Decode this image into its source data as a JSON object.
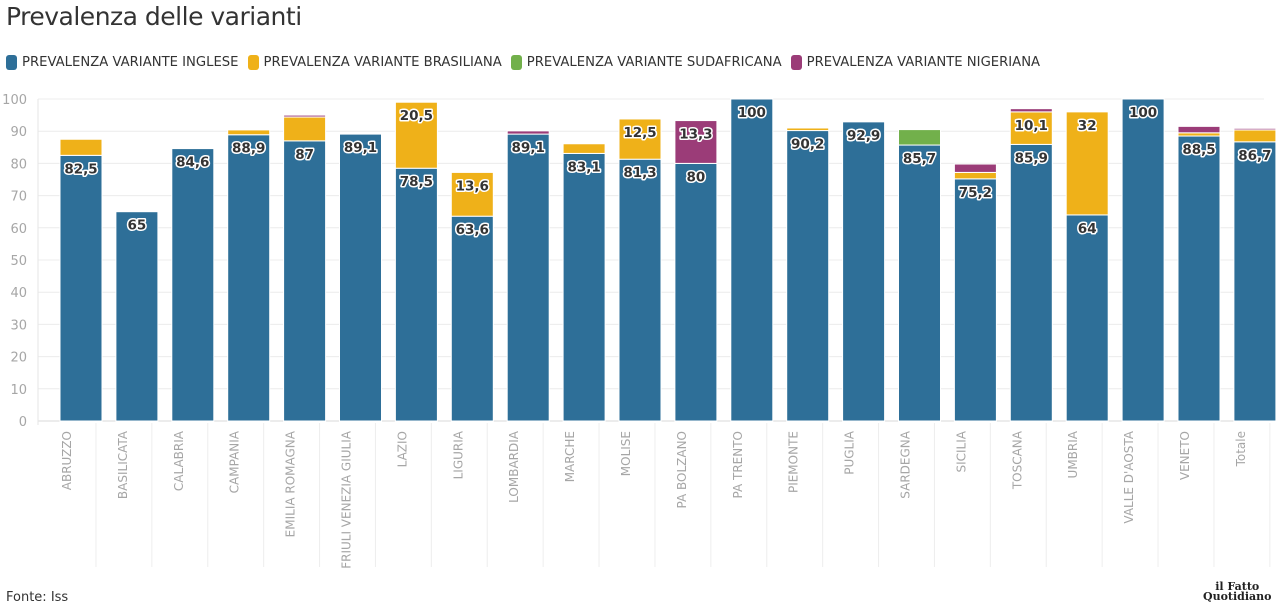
{
  "header": {
    "title": "Prevalenza delle varianti"
  },
  "legend": [
    {
      "label": "PREVALENZA VARIANTE INGLESE",
      "color": "#2e6f98"
    },
    {
      "label": "PREVALENZA VARIANTE BRASILIANA",
      "color": "#efb119"
    },
    {
      "label": "PREVALENZA VARIANTE SUDAFRICANA",
      "color": "#72b04b"
    },
    {
      "label": "PREVALENZA VARIANTE NIGERIANA",
      "color": "#9b3c78"
    }
  ],
  "footer": {
    "source": "Fonte: Iss",
    "logo_line1": "il Fatto",
    "logo_line2": "Quotidiano"
  },
  "chart_data": {
    "type": "bar",
    "stacked": true,
    "title": "Prevalenza delle varianti",
    "xlabel": "",
    "ylabel": "",
    "ylim": [
      0,
      100
    ],
    "yticks": [
      0,
      10,
      20,
      30,
      40,
      50,
      60,
      70,
      80,
      90,
      100
    ],
    "grid": true,
    "legend_position": "top-left",
    "categories": [
      "ABRUZZO",
      "BASILICATA",
      "CALABRIA",
      "CAMPANIA",
      "EMILIA ROMAGNA",
      "FRIULI VENEZIA GIULIA",
      "LAZIO",
      "LIGURIA",
      "LOMBARDIA",
      "MARCHE",
      "MOLISE",
      "PA BOLZANO",
      "PA TRENTO",
      "PIEMONTE",
      "PUGLIA",
      "SARDEGNA",
      "SICILIA",
      "TOSCANA",
      "UMBRIA",
      "VALLE D'AOSTA",
      "VENETO",
      "Totale"
    ],
    "series": [
      {
        "name": "PREVALENZA VARIANTE INGLESE",
        "color": "#2e6f98",
        "values": [
          82.5,
          65,
          84.6,
          88.9,
          87,
          89.1,
          78.5,
          63.6,
          89.1,
          83.1,
          81.3,
          80,
          100,
          90.2,
          92.9,
          85.7,
          75.2,
          85.9,
          64,
          100,
          88.5,
          86.7
        ],
        "labels": [
          "82,5",
          "65",
          "84,6",
          "88,9",
          "87",
          "89,1",
          "78,5",
          "63,6",
          "89,1",
          "83,1",
          "81,3",
          "80",
          "100",
          "90,2",
          "92,9",
          "85,7",
          "75,2",
          "85,9",
          "64",
          "100",
          "88,5",
          "86,7"
        ]
      },
      {
        "name": "PREVALENZA VARIANTE BRASILIANA",
        "color": "#efb119",
        "values": [
          5,
          0,
          0,
          1.5,
          7.4,
          0,
          20.5,
          13.6,
          0,
          3,
          12.5,
          0,
          0,
          0.8,
          0,
          0,
          2,
          10.1,
          32,
          0,
          1,
          3.7
        ],
        "labels": [
          "",
          "",
          "",
          "",
          "",
          "",
          "20,5",
          "13,6",
          "",
          "",
          "12,5",
          "",
          "",
          "",
          "",
          "",
          "",
          "10,1",
          "32",
          "",
          "",
          ""
        ]
      },
      {
        "name": "PREVALENZA VARIANTE SUDAFRICANA",
        "color": "#72b04b",
        "values": [
          0,
          0,
          0,
          0,
          0,
          0,
          0,
          0,
          0,
          0,
          0,
          0,
          0,
          0,
          0,
          4.8,
          0,
          0,
          0,
          0,
          0,
          0
        ],
        "labels": [
          "",
          "",
          "",
          "",
          "",
          "",
          "",
          "",
          "",
          "",
          "",
          "",
          "",
          "",
          "",
          "",
          "",
          "",
          "",
          "",
          "",
          ""
        ]
      },
      {
        "name": "PREVALENZA VARIANTE NIGERIANA",
        "color": "#9b3c78",
        "values": [
          0,
          0,
          0,
          0,
          0.6,
          0,
          0,
          0,
          1,
          0,
          0,
          13.3,
          0,
          0,
          0,
          0,
          2.6,
          1,
          0,
          0,
          2,
          0.5
        ],
        "labels": [
          "",
          "",
          "",
          "",
          "",
          "",
          "",
          "",
          "",
          "",
          "",
          "13,3",
          "",
          "",
          "",
          "",
          "",
          "",
          "",
          "",
          "",
          ""
        ]
      }
    ]
  }
}
